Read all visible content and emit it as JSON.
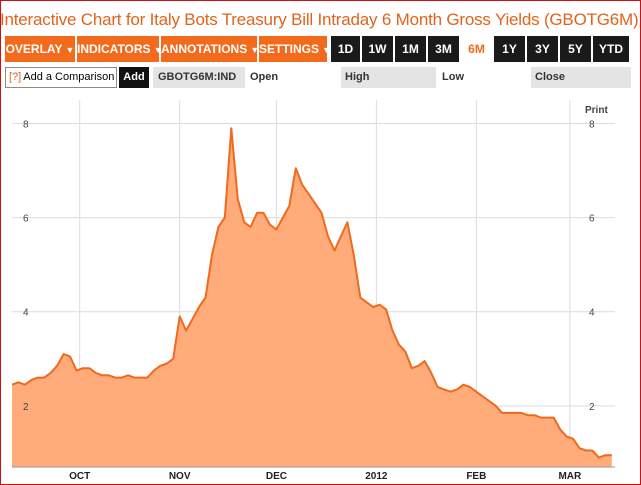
{
  "title": "Interactive Chart for Italy Bots Treasury Bill Intraday 6 Month Gross Yields (GBOTG6M)",
  "toolbar": {
    "menus": [
      "OVERLAY",
      "INDICATORS",
      "ANNOTATIONS",
      "SETTINGS"
    ],
    "ranges": [
      "1D",
      "1W",
      "1M",
      "3M",
      "6M",
      "1Y",
      "3Y",
      "5Y",
      "YTD"
    ],
    "active_range": "6M"
  },
  "compare": {
    "help": "[?]",
    "label": "Add a Comparison",
    "add_label": "Add"
  },
  "quote": {
    "ticker": "GBOTG6M:IND",
    "open_label": "Open",
    "open_value": "",
    "high_label": "High",
    "high_value": "",
    "low_label": "Low",
    "low_value": "",
    "close_label": "Close",
    "close_value": ""
  },
  "print_label": "Print",
  "colors": {
    "accent": "#f26a1b",
    "area_fill": "#ffab7a",
    "line": "#ef6a1e",
    "title": "#e0641c",
    "border": "#d01010"
  },
  "chart_data": {
    "type": "area",
    "title": "",
    "xlabel": "",
    "ylabel": "",
    "x_ticks": [
      "OCT",
      "NOV",
      "DEC",
      "2012",
      "FEB",
      "MAR"
    ],
    "x_tick_dates": [
      "2011-10-01",
      "2011-11-01",
      "2011-12-01",
      "2012-01-01",
      "2012-02-01",
      "2012-03-01"
    ],
    "y_ticks": [
      2,
      4,
      6,
      8
    ],
    "ylim": [
      0.7,
      8.5
    ],
    "xlim": [
      "2011-09-10",
      "2012-03-15"
    ],
    "grid": true,
    "legend": "none",
    "series": [
      {
        "x": [
          "2011-09-10",
          "2011-09-12",
          "2011-09-14",
          "2011-09-16",
          "2011-09-18",
          "2011-09-20",
          "2011-09-22",
          "2011-09-24",
          "2011-09-26",
          "2011-09-28",
          "2011-09-30",
          "2011-10-02",
          "2011-10-04",
          "2011-10-06",
          "2011-10-08",
          "2011-10-10",
          "2011-10-12",
          "2011-10-14",
          "2011-10-16",
          "2011-10-18",
          "2011-10-20",
          "2011-10-22",
          "2011-10-24",
          "2011-10-26",
          "2011-10-28",
          "2011-10-30",
          "2011-11-01",
          "2011-11-03",
          "2011-11-05",
          "2011-11-07",
          "2011-11-09",
          "2011-11-11",
          "2011-11-13",
          "2011-11-15",
          "2011-11-17",
          "2011-11-19",
          "2011-11-21",
          "2011-11-23",
          "2011-11-25",
          "2011-11-27",
          "2011-11-29",
          "2011-12-01",
          "2011-12-03",
          "2011-12-05",
          "2011-12-07",
          "2011-12-09",
          "2011-12-11",
          "2011-12-13",
          "2011-12-15",
          "2011-12-17",
          "2011-12-19",
          "2011-12-21",
          "2011-12-23",
          "2011-12-25",
          "2011-12-27",
          "2011-12-29",
          "2011-12-31",
          "2012-01-02",
          "2012-01-04",
          "2012-01-06",
          "2012-01-08",
          "2012-01-10",
          "2012-01-12",
          "2012-01-14",
          "2012-01-16",
          "2012-01-18",
          "2012-01-20",
          "2012-01-22",
          "2012-01-24",
          "2012-01-26",
          "2012-01-28",
          "2012-01-30",
          "2012-02-01",
          "2012-02-03",
          "2012-02-05",
          "2012-02-07",
          "2012-02-09",
          "2012-02-11",
          "2012-02-13",
          "2012-02-15",
          "2012-02-17",
          "2012-02-19",
          "2012-02-21",
          "2012-02-23",
          "2012-02-25",
          "2012-02-27",
          "2012-02-29",
          "2012-03-02",
          "2012-03-04",
          "2012-03-06",
          "2012-03-08",
          "2012-03-10",
          "2012-03-12",
          "2012-03-14"
        ],
        "y": [
          2.45,
          2.5,
          2.45,
          2.55,
          2.6,
          2.6,
          2.7,
          2.85,
          3.1,
          3.05,
          2.75,
          2.8,
          2.8,
          2.7,
          2.65,
          2.65,
          2.6,
          2.6,
          2.65,
          2.6,
          2.6,
          2.6,
          2.75,
          2.85,
          2.9,
          3.0,
          3.9,
          3.6,
          3.85,
          4.1,
          4.3,
          5.2,
          5.8,
          6.0,
          7.9,
          6.4,
          5.9,
          5.8,
          6.1,
          6.1,
          5.85,
          5.75,
          6.0,
          6.25,
          7.05,
          6.7,
          6.5,
          6.3,
          6.1,
          5.6,
          5.3,
          5.6,
          5.9,
          5.2,
          4.3,
          4.2,
          4.1,
          4.15,
          4.05,
          3.6,
          3.3,
          3.15,
          2.8,
          2.85,
          2.95,
          2.7,
          2.4,
          2.35,
          2.3,
          2.35,
          2.45,
          2.4,
          2.3,
          2.2,
          2.1,
          2.0,
          1.85,
          1.85,
          1.85,
          1.85,
          1.8,
          1.8,
          1.75,
          1.75,
          1.75,
          1.5,
          1.35,
          1.3,
          1.1,
          1.05,
          1.05,
          0.9,
          0.95,
          0.95
        ]
      }
    ]
  }
}
